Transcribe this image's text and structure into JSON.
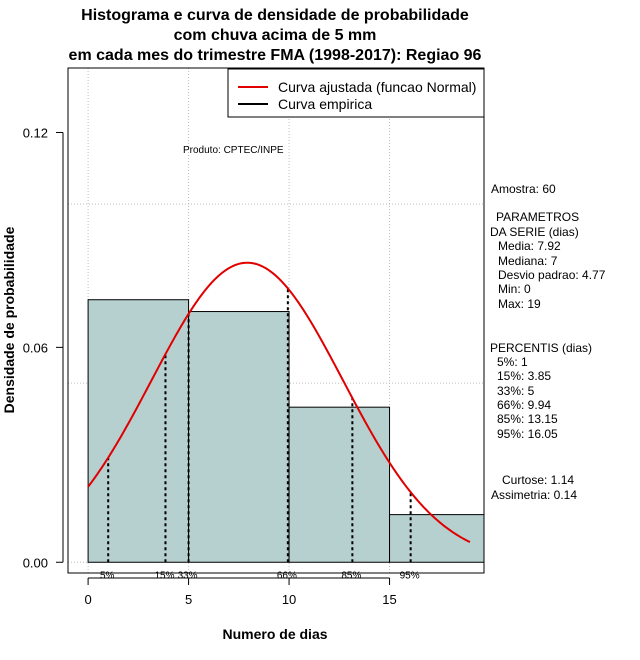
{
  "chart_data": {
    "type": "histogram",
    "title_lines": [
      "Histograma e curva de densidade de probabilidade",
      "com chuva acima de 5 mm",
      "em cada mes do trimestre FMA (1998-2017): Regiao 96"
    ],
    "xlabel": "Numero de dias",
    "ylabel": "Densidade de probabilidade",
    "xlim": [
      -1,
      19.7
    ],
    "ylim": [
      -0.003,
      0.138
    ],
    "x_ticks": [
      0,
      5,
      10,
      15
    ],
    "y_ticks": [
      0.0,
      0.06,
      0.12
    ],
    "y_tick_labels": [
      "0.00",
      "0.06",
      "0.12"
    ],
    "bins": [
      {
        "from": 0,
        "to": 5,
        "density": 0.0733
      },
      {
        "from": 5,
        "to": 10,
        "density": 0.07
      },
      {
        "from": 10,
        "to": 15,
        "density": 0.0433
      },
      {
        "from": 15,
        "to": 20,
        "density": 0.0133
      }
    ],
    "normal_fit": {
      "mean": 7.92,
      "sd": 4.77,
      "x_from": 0,
      "x_to": 19
    },
    "percentile_lines": [
      {
        "label": "5%",
        "x": 1
      },
      {
        "label": "15%",
        "x": 3.85
      },
      {
        "label": "33%",
        "x": 5
      },
      {
        "label": "66%",
        "x": 9.94
      },
      {
        "label": "85%",
        "x": 13.15
      },
      {
        "label": "95%",
        "x": 16.05
      }
    ],
    "legend": [
      {
        "label": "Curva ajustada (funcao Normal)",
        "color": "#e00000"
      },
      {
        "label": "Curva empirica",
        "color": "#000000"
      }
    ],
    "product_label": "Produto: CPTEC/INPE",
    "side_text": {
      "amostra": "Amostra: 60",
      "param_title_1": "PARAMETROS",
      "param_title_2": "DA SERIE (dias)",
      "media": "Media: 7.92",
      "mediana": "Mediana: 7",
      "desvio": "Desvio padrao: 4.77",
      "min": "Min: 0",
      "max": "Max: 19",
      "perc_title": "PERCENTIS (dias)",
      "p5": "5%: 1",
      "p15": "15%: 3.85",
      "p33": "33%: 5",
      "p66": "66%: 9.94",
      "p85": "85%: 13.15",
      "p95": "95%: 16.05",
      "curtose": "Curtose: 1.14",
      "assimetria": "Assimetria: 0.14"
    },
    "colors": {
      "bar_fill": "#b6cfcf",
      "fit_line": "#e00000",
      "grid": "#bdbdbd"
    }
  }
}
